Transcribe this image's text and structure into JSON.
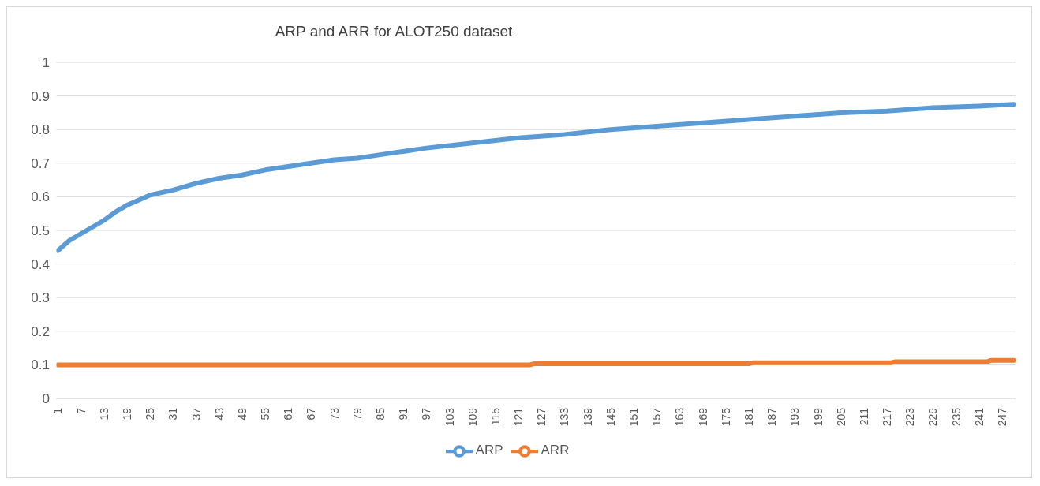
{
  "chart_data": {
    "type": "line",
    "title": "ARP and ARR for ALOT250 dataset",
    "xlim": [
      0.5,
      250.5
    ],
    "xticks": [
      1,
      7,
      13,
      19,
      25,
      31,
      37,
      43,
      49,
      55,
      61,
      67,
      73,
      79,
      85,
      91,
      97,
      103,
      109,
      115,
      121,
      127,
      133,
      139,
      145,
      151,
      157,
      163,
      169,
      175,
      181,
      187,
      193,
      199,
      205,
      211,
      217,
      223,
      229,
      235,
      241,
      247
    ],
    "ylim": [
      0,
      1
    ],
    "yticks": [
      0,
      0.1,
      0.2,
      0.3,
      0.4,
      0.5,
      0.6,
      0.7,
      0.8,
      0.9,
      1
    ],
    "grid": "y",
    "legend": "bottom",
    "marker": "none",
    "line_style": "solid",
    "series": [
      {
        "name": "ARP",
        "color": "#5b9bd5",
        "x": [
          1,
          4,
          7,
          10,
          13,
          16,
          19,
          22,
          25,
          31,
          37,
          43,
          49,
          55,
          61,
          67,
          73,
          79,
          85,
          97,
          109,
          121,
          133,
          145,
          157,
          169,
          181,
          193,
          205,
          217,
          229,
          241,
          250
        ],
        "values": [
          0.44,
          0.47,
          0.49,
          0.51,
          0.53,
          0.555,
          0.575,
          0.59,
          0.605,
          0.62,
          0.64,
          0.655,
          0.665,
          0.68,
          0.69,
          0.7,
          0.71,
          0.715,
          0.725,
          0.745,
          0.76,
          0.775,
          0.785,
          0.8,
          0.81,
          0.82,
          0.83,
          0.84,
          0.85,
          0.855,
          0.865,
          0.87,
          0.875
        ]
      },
      {
        "name": "ARR",
        "color": "#ed7d31",
        "x": [
          1,
          124,
          125,
          181,
          182,
          218,
          219,
          243,
          244,
          250
        ],
        "values": [
          0.1,
          0.1,
          0.103,
          0.103,
          0.106,
          0.106,
          0.109,
          0.109,
          0.113,
          0.113
        ]
      }
    ]
  }
}
